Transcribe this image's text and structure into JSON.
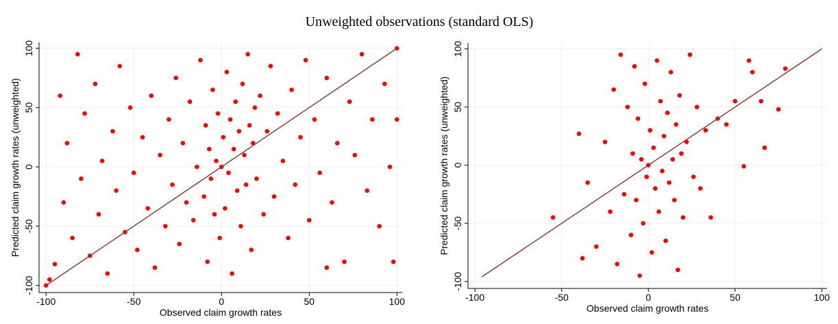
{
  "title": "Unweighted observations (standard OLS)",
  "chart_data": [
    {
      "type": "scatter",
      "x_label": "Observed claim growth rates",
      "y_label": "Predicted claim growth rates (unweighted)",
      "xlim": [
        -104,
        103
      ],
      "ylim": [
        -106,
        105
      ],
      "xticks": [
        -100,
        -50,
        0,
        50,
        100
      ],
      "yticks": [
        -100,
        -50,
        0,
        50,
        100
      ],
      "grid": true,
      "series": [
        {
          "color": "#ff0000",
          "x": [
            -100,
            -98,
            -95,
            -92,
            -90,
            -88,
            -85,
            -82,
            -80,
            -78,
            -75,
            -72,
            -70,
            -68,
            -65,
            -62,
            -60,
            -58,
            -55,
            -52,
            -50,
            -48,
            -45,
            -42,
            -40,
            -38,
            -35,
            -32,
            -30,
            -28,
            -26,
            -24,
            -22,
            -20,
            -18,
            -16,
            -14,
            -12,
            -10,
            -9,
            -8,
            -7,
            -6,
            -5,
            -4,
            -3,
            -2,
            -1,
            0,
            1,
            2,
            3,
            4,
            5,
            6,
            7,
            8,
            9,
            10,
            11,
            12,
            13,
            14,
            15,
            16,
            17,
            18,
            19,
            20,
            22,
            24,
            26,
            28,
            30,
            32,
            35,
            38,
            40,
            42,
            45,
            48,
            50,
            53,
            56,
            60,
            63,
            66,
            70,
            73,
            76,
            80,
            83,
            86,
            90,
            93,
            96,
            98,
            100,
            100,
            60
          ],
          "y": [
            -100,
            -95,
            -82,
            60,
            -30,
            20,
            -60,
            95,
            -10,
            45,
            -75,
            70,
            -40,
            5,
            -90,
            30,
            -20,
            85,
            -55,
            50,
            -5,
            -70,
            25,
            -35,
            60,
            -85,
            10,
            -50,
            40,
            -15,
            75,
            -65,
            20,
            -30,
            55,
            -45,
            0,
            90,
            -25,
            35,
            -80,
            15,
            -10,
            65,
            -40,
            5,
            45,
            -60,
            0,
            25,
            -35,
            80,
            -5,
            40,
            -90,
            15,
            55,
            -20,
            30,
            -50,
            70,
            10,
            -15,
            95,
            35,
            -70,
            20,
            50,
            -10,
            60,
            -40,
            30,
            85,
            -25,
            45,
            5,
            -60,
            65,
            -15,
            25,
            90,
            -45,
            40,
            -5,
            75,
            -30,
            20,
            -80,
            55,
            10,
            95,
            -20,
            40,
            -50,
            70,
            0,
            -80,
            100,
            40,
            -85
          ]
        }
      ],
      "fit_line": {
        "color": "#8b3a3a",
        "x": [
          -100,
          100
        ],
        "y": [
          -100,
          100
        ]
      }
    },
    {
      "type": "scatter",
      "x_label": "Observed claim growth rates",
      "y_label": "Predicted claim growth rates (unweighted)",
      "xlim": [
        -104,
        103
      ],
      "ylim": [
        -106,
        105
      ],
      "xticks": [
        -100,
        -50,
        0,
        50,
        100
      ],
      "yticks": [
        -100,
        -50,
        0,
        50,
        100
      ],
      "grid": true,
      "series": [
        {
          "color": "#ff0000",
          "x": [
            -55,
            -40,
            -35,
            -30,
            -25,
            -22,
            -20,
            -18,
            -16,
            -14,
            -12,
            -10,
            -9,
            -8,
            -7,
            -6,
            -5,
            -4,
            -3,
            -2,
            -1,
            0,
            1,
            2,
            3,
            4,
            5,
            6,
            7,
            8,
            9,
            10,
            11,
            12,
            13,
            14,
            15,
            16,
            17,
            18,
            19,
            20,
            22,
            24,
            26,
            28,
            30,
            33,
            36,
            40,
            45,
            50,
            55,
            58,
            60,
            65,
            67,
            75,
            79,
            -38
          ],
          "y": [
            -45,
            27,
            -15,
            -70,
            20,
            -40,
            65,
            -85,
            95,
            -25,
            50,
            -60,
            10,
            85,
            -30,
            40,
            -95,
            5,
            -50,
            70,
            -10,
            0,
            30,
            -75,
            15,
            -20,
            90,
            -40,
            55,
            -5,
            25,
            -65,
            45,
            -15,
            80,
            5,
            -30,
            35,
            -90,
            60,
            10,
            -45,
            20,
            95,
            -10,
            50,
            -20,
            30,
            -45,
            40,
            35,
            55,
            -1,
            90,
            80,
            55,
            15,
            48,
            83,
            -80
          ]
        }
      ],
      "fit_line": {
        "color": "#8b3a3a",
        "x": [
          -96,
          100
        ],
        "y": [
          -96,
          100
        ]
      }
    }
  ]
}
